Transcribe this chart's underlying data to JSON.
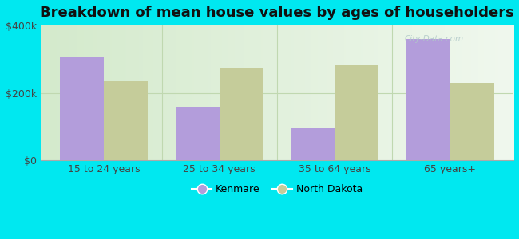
{
  "title": "Breakdown of mean house values by ages of householders",
  "categories": [
    "15 to 24 years",
    "25 to 34 years",
    "35 to 64 years",
    "65 years+"
  ],
  "kenmare_values": [
    305000,
    160000,
    95000,
    360000
  ],
  "nd_values": [
    235000,
    275000,
    285000,
    230000
  ],
  "kenmare_color": "#b39ddb",
  "nd_color": "#c5cc9a",
  "background_color": "#00e8f0",
  "ylim": [
    0,
    400000
  ],
  "yticks": [
    0,
    200000,
    400000
  ],
  "ytick_labels": [
    "$0",
    "$200k",
    "$400k"
  ],
  "legend_kenmare": "Kenmare",
  "legend_nd": "North Dakota",
  "bar_width": 0.38,
  "title_fontsize": 13,
  "tick_fontsize": 9,
  "legend_fontsize": 9,
  "watermark": "City-Data.com"
}
